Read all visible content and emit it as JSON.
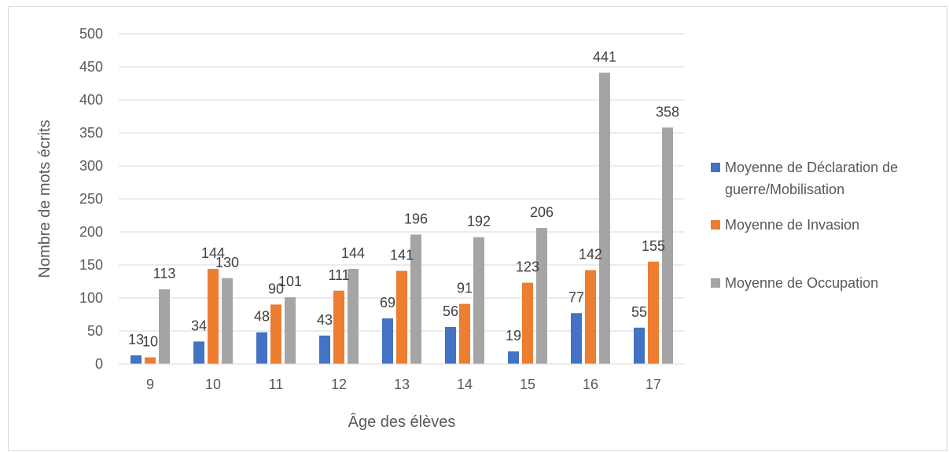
{
  "chart_data": {
    "type": "bar",
    "title": "",
    "xlabel": "Âge des élèves",
    "ylabel": "Nombre de mots écrits",
    "categories": [
      "9",
      "10",
      "11",
      "12",
      "13",
      "14",
      "15",
      "16",
      "17"
    ],
    "ylim": [
      0,
      500
    ],
    "yticks": [
      0,
      50,
      100,
      150,
      200,
      250,
      300,
      350,
      400,
      450,
      500
    ],
    "grid": "horizontal",
    "legend_position": "right",
    "series": [
      {
        "name": "Moyenne de Déclaration de guerre/Mobilisation",
        "legend_lines": [
          "Moyenne de Déclaration de",
          "guerre/Mobilisation"
        ],
        "color": "#4472c4",
        "values": [
          13,
          34,
          48,
          43,
          69,
          56,
          19,
          77,
          55
        ]
      },
      {
        "name": "Moyenne de Invasion",
        "legend_lines": [
          "Moyenne de Invasion"
        ],
        "color": "#ed7d31",
        "values": [
          10,
          144,
          90,
          111,
          141,
          91,
          123,
          142,
          155
        ]
      },
      {
        "name": "Moyenne de Occupation",
        "legend_lines": [
          "Moyenne de Occupation"
        ],
        "color": "#a5a5a5",
        "values": [
          113,
          130,
          101,
          144,
          196,
          192,
          206,
          441,
          358
        ]
      }
    ]
  }
}
